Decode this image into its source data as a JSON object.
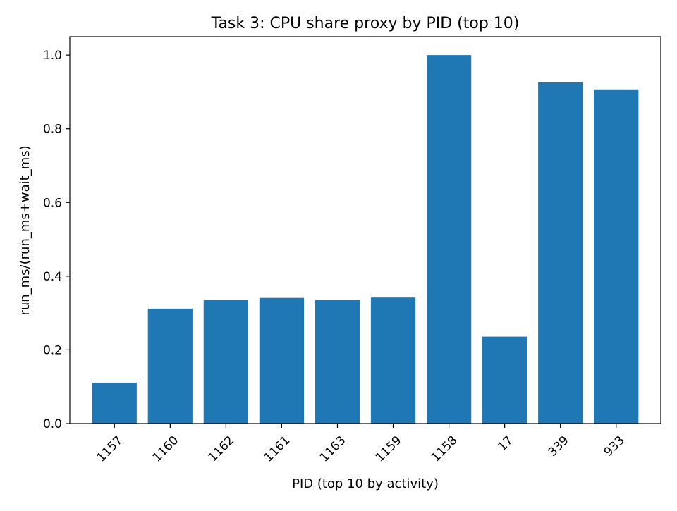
{
  "chart_data": {
    "type": "bar",
    "title": "Task 3: CPU share proxy by PID (top 10)",
    "xlabel": "PID (top 10 by activity)",
    "ylabel": "run_ms/(run_ms+wait_ms)",
    "categories": [
      "1157",
      "1160",
      "1162",
      "1161",
      "1163",
      "1159",
      "1158",
      "17",
      "339",
      "933"
    ],
    "values": [
      0.111,
      0.312,
      0.335,
      0.341,
      0.335,
      0.342,
      1.0,
      0.236,
      0.926,
      0.907
    ],
    "ylim": [
      0,
      1.05
    ],
    "yticks": [
      "0.0",
      "0.2",
      "0.4",
      "0.6",
      "0.8",
      "1.0"
    ],
    "grid": false,
    "colors": {
      "bar": "#1f77b4",
      "axis": "#000000",
      "background": "#ffffff"
    }
  }
}
